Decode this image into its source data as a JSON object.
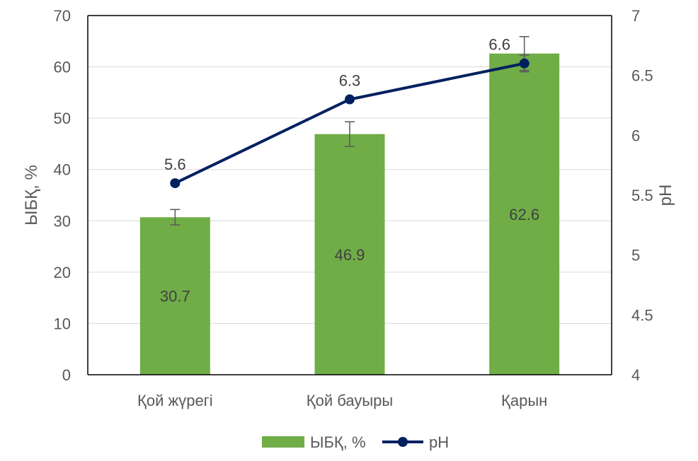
{
  "chart_data": {
    "type": "bar",
    "categories": [
      "Қой жүрегі",
      "Қой бауыры",
      "Қарын"
    ],
    "series": [
      {
        "name": "ЫБҚ, %",
        "type": "bar",
        "axis": "left",
        "values": [
          30.7,
          46.9,
          62.6
        ],
        "error": [
          1.5,
          2.4,
          3.3
        ],
        "data_labels": [
          "30.7",
          "46.9",
          "62.6"
        ],
        "color": "#70ad47"
      },
      {
        "name": "pH",
        "type": "line",
        "axis": "right",
        "values": [
          5.6,
          6.3,
          6.6
        ],
        "error": [
          0,
          0,
          0.07
        ],
        "data_labels": [
          "5.6",
          "6.3",
          "6.6"
        ],
        "color": "#002060"
      }
    ],
    "ylabel": "ЫБҚ, %",
    "y2label": "pH",
    "ylim": [
      0,
      70
    ],
    "yticks": [
      0,
      10,
      20,
      30,
      40,
      50,
      60,
      70
    ],
    "ytick_labels": [
      "0",
      "10",
      "20",
      "30",
      "40",
      "50",
      "60",
      "70"
    ],
    "y2lim": [
      4,
      7
    ],
    "y2ticks": [
      4,
      4.5,
      5,
      5.5,
      6,
      6.5,
      7
    ],
    "y2tick_labels": [
      "4",
      "4.5",
      "5",
      "5.5",
      "6",
      "6.5",
      "7"
    ],
    "grid": true,
    "legend_position": "bottom"
  }
}
